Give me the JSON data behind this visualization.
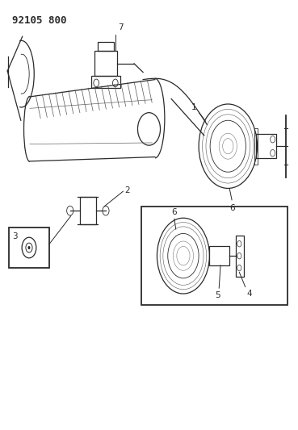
{
  "title": "92105 800",
  "bg_color": "#ffffff",
  "line_color": "#2a2a2a",
  "figsize": [
    3.69,
    5.33
  ],
  "dpi": 100
}
